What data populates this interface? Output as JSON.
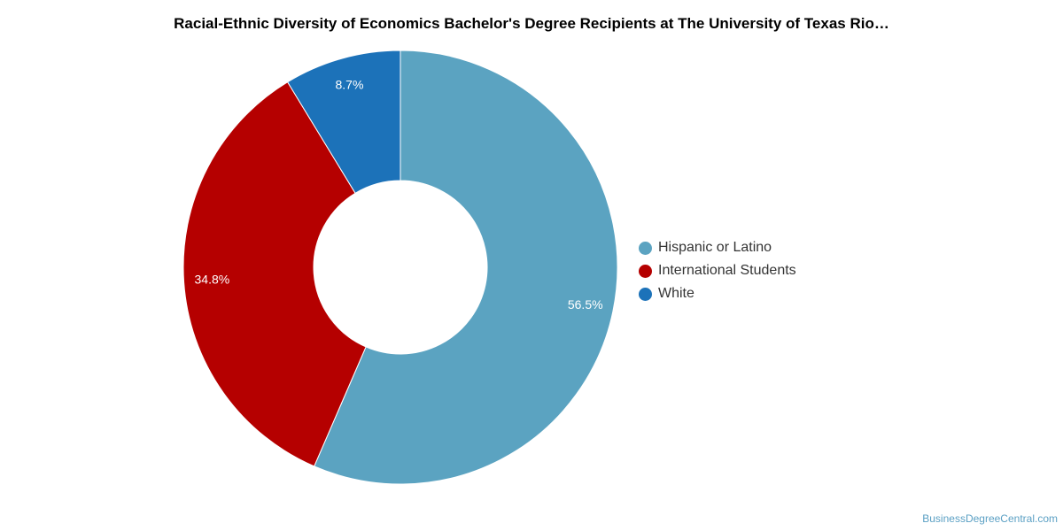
{
  "chart_data": {
    "type": "pie",
    "title": "Racial-Ethnic Diversity of Economics Bachelor's Degree Recipients at The University of Texas Rio…",
    "categories": [
      "Hispanic or Latino",
      "International Students",
      "White"
    ],
    "values": [
      56.5,
      34.8,
      8.7
    ],
    "labels": [
      "56.5%",
      "34.8%",
      "8.7%"
    ],
    "colors": [
      "#5ba3c1",
      "#b50000",
      "#1c72b9"
    ],
    "donut": true,
    "legend_position": "right"
  },
  "legend": {
    "items": [
      {
        "label": "Hispanic or Latino",
        "color": "#5ba3c1"
      },
      {
        "label": "International Students",
        "color": "#b50000"
      },
      {
        "label": "White",
        "color": "#1c72b9"
      }
    ]
  },
  "footer": {
    "source": "BusinessDegreeCentral.com"
  }
}
